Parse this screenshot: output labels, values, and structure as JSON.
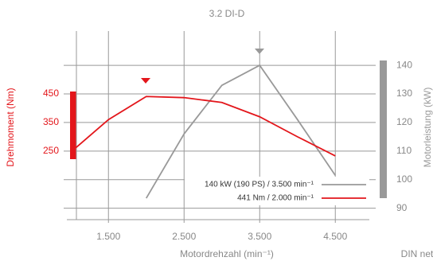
{
  "chart_data": {
    "type": "line",
    "title": "3.2 DI-D",
    "x_label": "Motordrehzahl (min⁻¹)",
    "y_label": "Drehmoment (Nm)",
    "y2_label": "Motorleistung (kW)",
    "note": "DIN net",
    "xlim": [
      950,
      4950
    ],
    "xticks": [
      {
        "value": 1500,
        "label": "1.500"
      },
      {
        "value": 2500,
        "label": "2.500"
      },
      {
        "value": 3500,
        "label": "3.500"
      },
      {
        "value": 4500,
        "label": "4.500"
      }
    ],
    "ylim": [
      10,
      670
    ],
    "yticks": [
      250,
      350,
      450
    ],
    "y2lim": [
      86,
      152
    ],
    "y2ticks": [
      90,
      100,
      110,
      120,
      130,
      140
    ],
    "grid": true,
    "legend": "lower-right",
    "series": [
      {
        "name": "140 kW (190 PS) / 3.500 min⁻¹",
        "color": "#999999",
        "axis": "y2",
        "x": [
          2000,
          2500,
          3000,
          3500,
          4000,
          4500
        ],
        "values": [
          93.5,
          116,
          133,
          140,
          121,
          101.5
        ]
      },
      {
        "name": "441 Nm / 2.000 min⁻¹",
        "color": "#e3161b",
        "axis": "y",
        "x": [
          1070,
          1500,
          2000,
          2500,
          3000,
          3500,
          4000,
          4500
        ],
        "values": [
          262,
          360,
          441,
          437,
          420,
          370,
          300,
          233
        ]
      }
    ]
  }
}
